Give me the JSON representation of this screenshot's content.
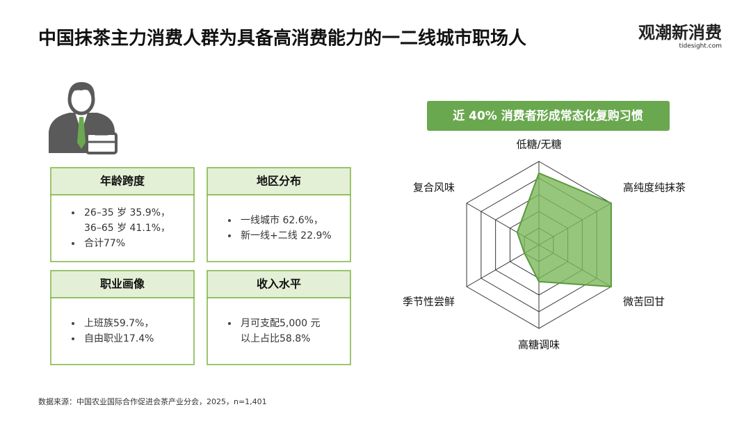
{
  "header": {
    "title": "中国抹茶主力消费人群为具备高消费能力的一二线城市职场人",
    "logo": "观潮新消费",
    "logo_url": "tidesight.com"
  },
  "cards": [
    {
      "title": "年龄跨度",
      "items": [
        [
          "26–35 岁 35.9%，",
          "36–65 岁 41.1%，"
        ],
        [
          "合计77%"
        ]
      ]
    },
    {
      "title": "地区分布",
      "items": [
        [
          "一线城市 62.6%，"
        ],
        [
          "新一线+二线 22.9%"
        ]
      ]
    },
    {
      "title": "职业画像",
      "items": [
        [
          "上班族59.7%，"
        ],
        [
          "自由职业17.4%"
        ]
      ]
    },
    {
      "title": "收入水平",
      "items": [
        [
          "月可支配5,000 元",
          "以上占比58.8%"
        ]
      ]
    }
  ],
  "chart_data": {
    "type": "radar",
    "title": "近 40% 消费者形成常态化复购习惯",
    "categories": [
      "低糖/无糖",
      "高纯度纯抹茶",
      "微苦回甘",
      "高糖调味",
      "季节性尝鲜",
      "复合风味"
    ],
    "values": [
      4.3,
      5,
      5,
      2.2,
      1,
      1.5
    ],
    "color": "#7cb85a",
    "ylim": [
      0,
      5
    ],
    "yticks": [
      1,
      2,
      3,
      4,
      5
    ],
    "grid": true
  },
  "footer": {
    "source": "数据来源：中国农业国际合作促进会茶产业分会，2025，n=1,401"
  }
}
